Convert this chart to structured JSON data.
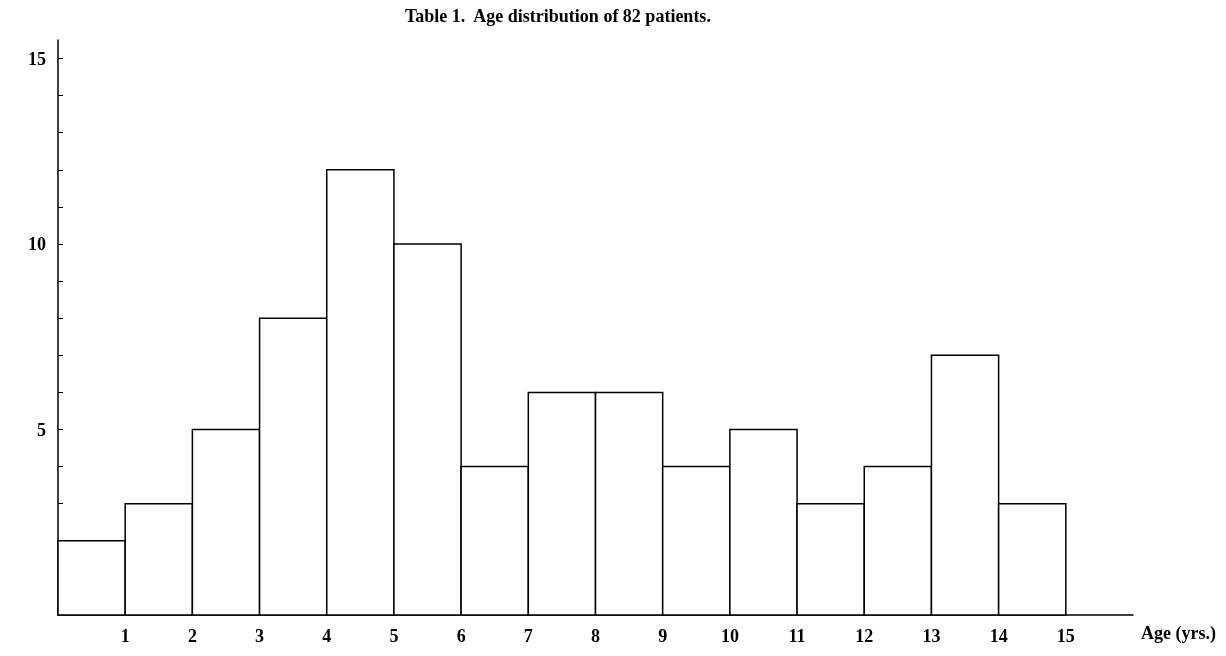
{
  "chart_data": {
    "type": "histogram",
    "title": "Table 1.  Age distribution of 82 patients.",
    "xlabel": "Age (yrs.)",
    "bins": [
      0,
      1,
      2,
      3,
      4,
      5,
      6,
      7,
      8,
      9,
      10,
      11,
      12,
      13,
      14,
      15
    ],
    "values": [
      2,
      3,
      5,
      8,
      12,
      10,
      4,
      6,
      6,
      4,
      5,
      3,
      4,
      7,
      3
    ],
    "color": "#ffffff",
    "xlim": [
      0,
      16
    ],
    "xticks": [
      1,
      2,
      3,
      4,
      5,
      6,
      7,
      8,
      9,
      10,
      11,
      12,
      13,
      14,
      15
    ],
    "ylim": [
      0,
      15.5
    ],
    "yticks": [
      {
        "value": 1,
        "label": null
      },
      {
        "value": 2,
        "label": null
      },
      {
        "value": 3,
        "label": null
      },
      {
        "value": 4,
        "label": null
      },
      5,
      {
        "value": 6,
        "label": null
      },
      {
        "value": 7,
        "label": null
      },
      {
        "value": 8,
        "label": null
      },
      {
        "value": 9,
        "label": null
      },
      10,
      {
        "value": 11,
        "label": null
      },
      {
        "value": 12,
        "label": null
      },
      {
        "value": 13,
        "label": null
      },
      {
        "value": 14,
        "label": null
      },
      15
    ],
    "grid": false
  }
}
